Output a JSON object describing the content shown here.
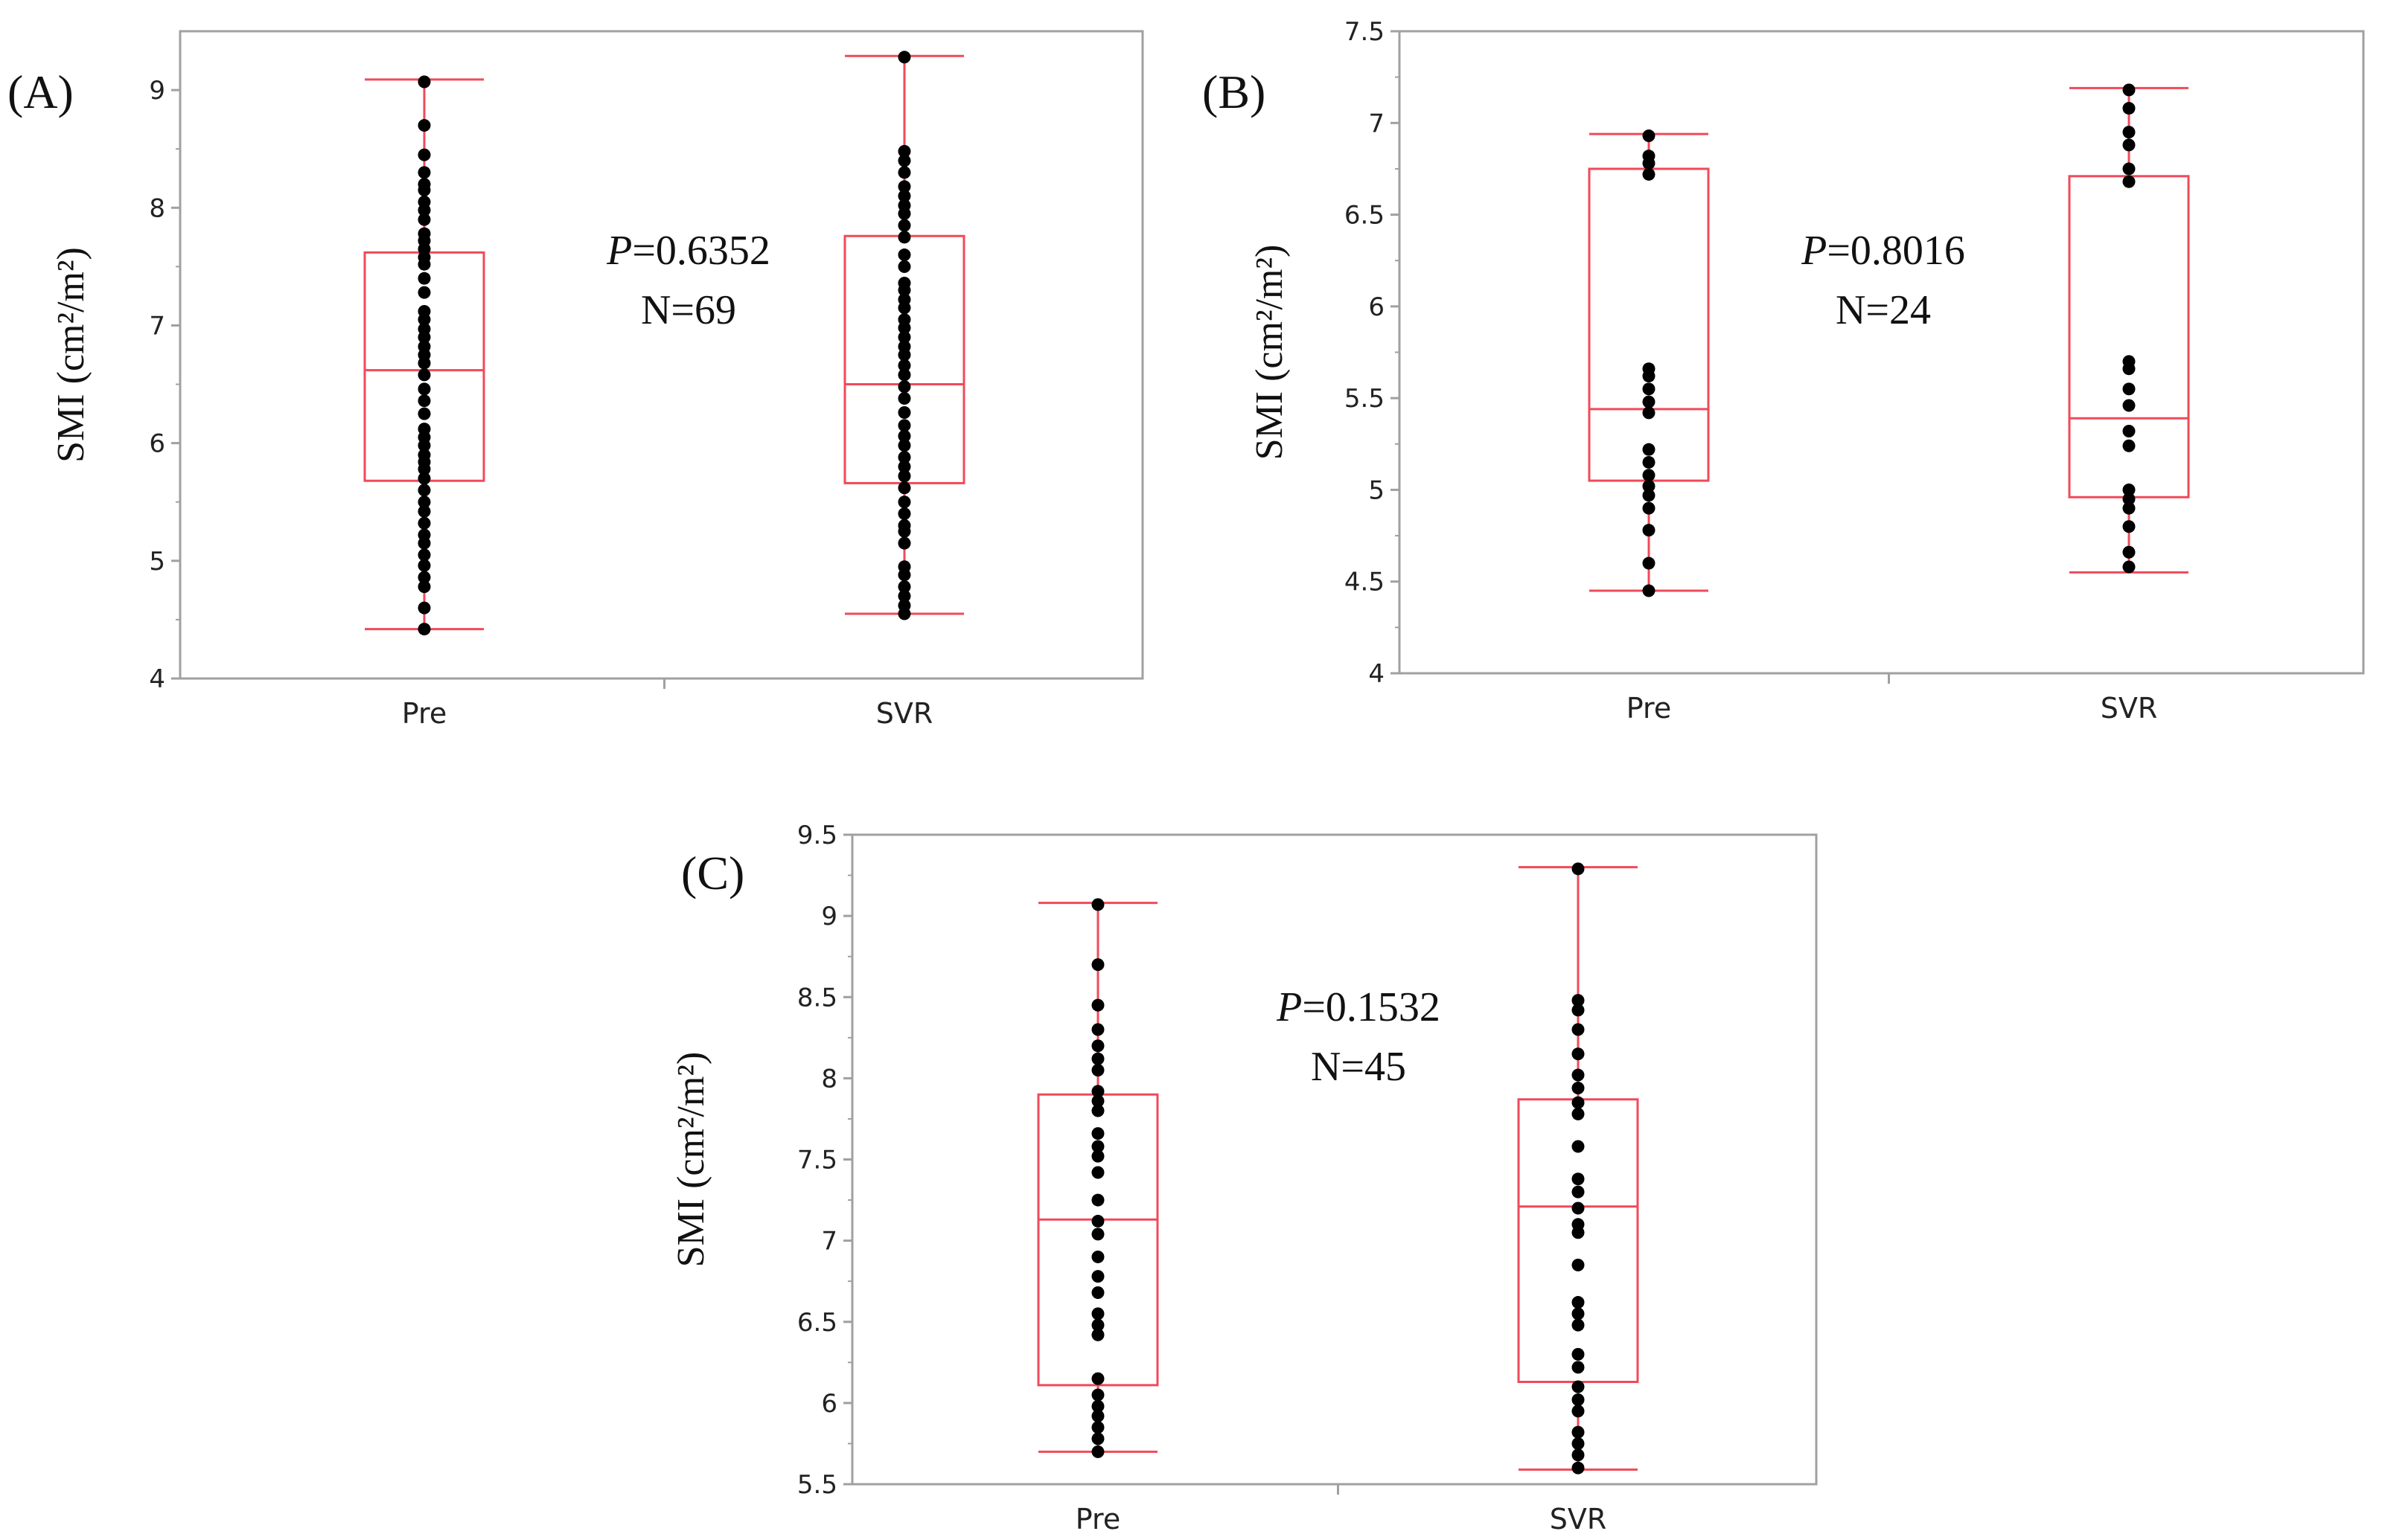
{
  "colors": {
    "box": "#f04a5a",
    "frame": "#a0a0a0",
    "point": "#000000",
    "tick_text": "#222222"
  },
  "chart_data": [
    {
      "type": "box",
      "panel_label": "(A)",
      "ylabel": "SMI (cm²/m²)",
      "ylim": [
        4,
        9.5
      ],
      "yticks": [
        4,
        5,
        6,
        7,
        8,
        9
      ],
      "categories": [
        "Pre",
        "SVR"
      ],
      "annotation": {
        "p_label": "P",
        "p_value": "=0.6352",
        "n": "N=69"
      },
      "groups": [
        {
          "name": "Pre",
          "whisker_low": 4.42,
          "q1": 5.68,
          "median": 6.62,
          "q3": 7.62,
          "whisker_high": 9.09,
          "points": [
            9.07,
            8.7,
            8.45,
            8.3,
            8.2,
            8.15,
            8.05,
            7.98,
            7.9,
            7.78,
            7.72,
            7.65,
            7.58,
            7.52,
            7.4,
            7.28,
            7.12,
            7.05,
            6.97,
            6.9,
            6.82,
            6.75,
            6.68,
            6.58,
            6.46,
            6.36,
            6.25,
            6.12,
            6.05,
            5.98,
            5.9,
            5.84,
            5.78,
            5.7,
            5.6,
            5.5,
            5.42,
            5.32,
            5.22,
            5.15,
            5.05,
            4.96,
            4.86,
            4.78,
            4.6,
            4.42
          ]
        },
        {
          "name": "SVR",
          "whisker_low": 4.55,
          "q1": 5.66,
          "median": 6.5,
          "q3": 7.76,
          "whisker_high": 9.29,
          "points": [
            9.28,
            8.48,
            8.4,
            8.3,
            8.18,
            8.1,
            8.02,
            7.95,
            7.85,
            7.75,
            7.6,
            7.5,
            7.36,
            7.3,
            7.22,
            7.15,
            7.05,
            6.98,
            6.9,
            6.82,
            6.75,
            6.66,
            6.58,
            6.48,
            6.38,
            6.26,
            6.15,
            6.06,
            5.98,
            5.88,
            5.8,
            5.72,
            5.62,
            5.5,
            5.4,
            5.3,
            5.25,
            5.15,
            4.95,
            4.88,
            4.78,
            4.7,
            4.62,
            4.55
          ]
        }
      ]
    },
    {
      "type": "box",
      "panel_label": "(B)",
      "ylabel": "SMI (cm²/m²)",
      "ylim": [
        4,
        7.5
      ],
      "yticks": [
        4,
        4.5,
        5,
        5.5,
        6,
        6.5,
        7,
        7.5
      ],
      "categories": [
        "Pre",
        "SVR"
      ],
      "annotation": {
        "p_label": "P",
        "p_value": "=0.8016",
        "n": "N=24"
      },
      "groups": [
        {
          "name": "Pre",
          "whisker_low": 4.45,
          "q1": 5.05,
          "median": 5.44,
          "q3": 6.75,
          "whisker_high": 6.94,
          "points": [
            6.93,
            6.82,
            6.78,
            6.72,
            5.66,
            5.62,
            5.55,
            5.48,
            5.42,
            5.22,
            5.15,
            5.08,
            5.02,
            4.97,
            4.9,
            4.78,
            4.6,
            4.45
          ]
        },
        {
          "name": "SVR",
          "whisker_low": 4.55,
          "q1": 4.96,
          "median": 5.39,
          "q3": 6.71,
          "whisker_high": 7.19,
          "points": [
            7.18,
            7.08,
            6.95,
            6.88,
            6.75,
            6.68,
            5.7,
            5.66,
            5.55,
            5.46,
            5.32,
            5.24,
            5.0,
            4.95,
            4.9,
            4.8,
            4.66,
            4.58
          ]
        }
      ]
    },
    {
      "type": "box",
      "panel_label": "(C)",
      "ylabel": "SMI (cm²/m²)",
      "ylim": [
        5.5,
        9.5
      ],
      "yticks": [
        5.5,
        6,
        6.5,
        7,
        7.5,
        8,
        8.5,
        9,
        9.5
      ],
      "categories": [
        "Pre",
        "SVR"
      ],
      "annotation": {
        "p_label": "P",
        "p_value": "=0.1532",
        "n": "N=45"
      },
      "groups": [
        {
          "name": "Pre",
          "whisker_low": 5.7,
          "q1": 6.11,
          "median": 7.13,
          "q3": 7.9,
          "whisker_high": 9.08,
          "points": [
            9.07,
            8.7,
            8.45,
            8.3,
            8.2,
            8.12,
            8.05,
            7.92,
            7.86,
            7.8,
            7.66,
            7.58,
            7.52,
            7.42,
            7.25,
            7.12,
            7.04,
            6.9,
            6.78,
            6.68,
            6.55,
            6.48,
            6.42,
            6.15,
            6.05,
            5.98,
            5.92,
            5.85,
            5.78,
            5.7
          ]
        },
        {
          "name": "SVR",
          "whisker_low": 5.59,
          "q1": 6.13,
          "median": 7.21,
          "q3": 7.87,
          "whisker_high": 9.3,
          "points": [
            9.29,
            8.48,
            8.42,
            8.3,
            8.15,
            8.02,
            7.94,
            7.85,
            7.78,
            7.58,
            7.38,
            7.3,
            7.2,
            7.1,
            7.05,
            6.85,
            6.62,
            6.55,
            6.48,
            6.3,
            6.22,
            6.1,
            6.02,
            5.95,
            5.82,
            5.75,
            5.68,
            5.6
          ]
        }
      ]
    }
  ]
}
